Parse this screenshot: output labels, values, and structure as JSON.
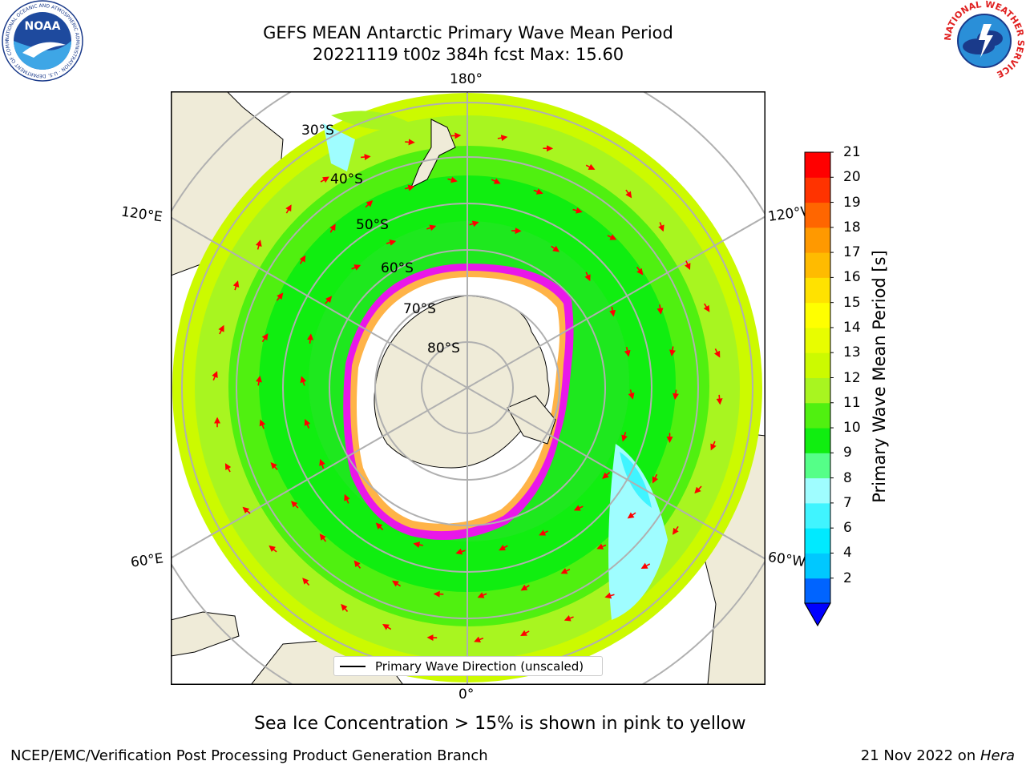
{
  "title": {
    "line1": "GEFS MEAN Antarctic Primary Wave Mean Period",
    "line2": "20221119 t00z 384h fcst   Max: 15.60"
  },
  "map": {
    "longitude_labels": {
      "top": "180°",
      "bottom": "0°",
      "upper_left": "120°E",
      "upper_right": "120°W",
      "lower_left": "60°E",
      "lower_right": "60°W"
    },
    "latitude_labels": [
      "30°S",
      "40°S",
      "50°S",
      "60°S",
      "70°S",
      "80°S"
    ],
    "legend": {
      "label": "Primary Wave Direction (unscaled)"
    },
    "colors": {
      "land": "#efebd8",
      "ocean_green": "#1ee81e",
      "ice": "#ffffff",
      "ice_edge": "#ff00ff",
      "arrow": "#ff0000",
      "grid": "#b0b0b0"
    }
  },
  "colorbar": {
    "label": "Primary Wave Mean Period [s]",
    "ticks": [
      "21",
      "20",
      "19",
      "18",
      "17",
      "16",
      "15",
      "14",
      "13",
      "12",
      "11",
      "10",
      "9",
      "8",
      "7",
      "6",
      "4",
      "2"
    ],
    "tick_values": [
      21,
      20,
      19,
      18,
      17,
      16,
      15,
      14,
      13,
      12,
      11,
      10,
      9,
      8,
      7,
      6,
      4,
      2
    ],
    "colors_bottom_to_top": [
      "#0064ff",
      "#00c8ff",
      "#00eaff",
      "#40f4ff",
      "#9ffdff",
      "#55ff88",
      "#10ee10",
      "#50f010",
      "#a8f520",
      "#ccfa00",
      "#e8fd00",
      "#ffff00",
      "#ffe200",
      "#ffbb00",
      "#ff9900",
      "#ff6600",
      "#ff3300",
      "#ff0000"
    ],
    "extend_color": "#0000ff"
  },
  "caption": "Sea Ice Concentration > 15% is shown in pink to yellow",
  "footer": {
    "left": "NCEP/EMC/Verification Post Processing Product Generation Branch",
    "right_date": "21 Nov 2022 on ",
    "right_host": "Hera"
  },
  "logos": {
    "noaa": {
      "text": "NOAA",
      "ring_text": "NATIONAL OCEANIC AND ATMOSPHERIC ADMINISTRATION · U.S. DEPARTMENT OF COMMERCE"
    },
    "nws": {
      "ring_text": "NATIONAL WEATHER SERVICE"
    }
  }
}
